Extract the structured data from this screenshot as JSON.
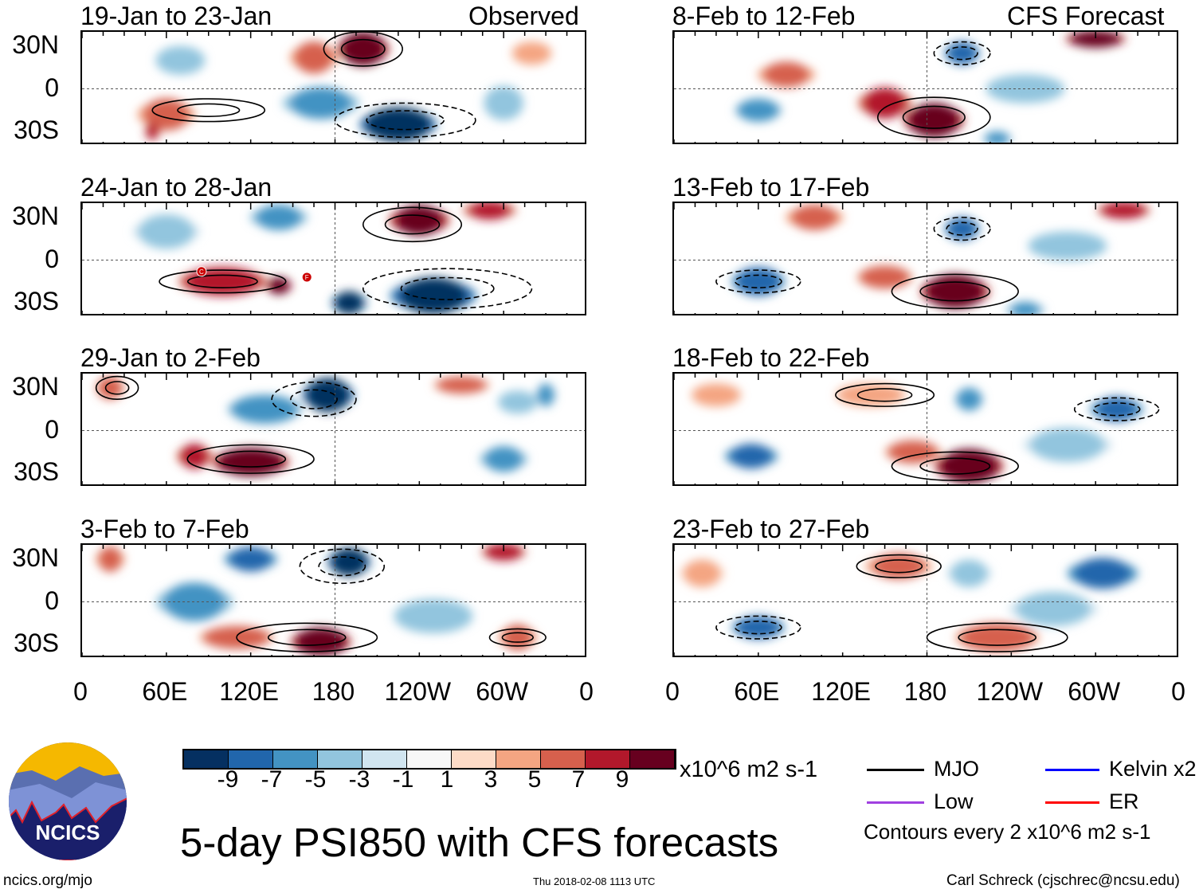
{
  "header": {
    "left_label": "Observed",
    "right_label": "CFS Forecast"
  },
  "lat_labels": [
    "30N",
    "0",
    "30S"
  ],
  "lon_labels": [
    "0",
    "60E",
    "120E",
    "180",
    "120W",
    "60W",
    "0"
  ],
  "panels": [
    {
      "title": "19-Jan to 23-Jan",
      "column": "left",
      "blobs": [
        [
          200,
          28,
          10,
          30,
          12
        ],
        [
          165,
          22,
          5,
          25,
          10
        ],
        [
          225,
          -25,
          -10,
          45,
          12
        ],
        [
          170,
          -10,
          -5,
          40,
          10
        ],
        [
          60,
          -18,
          5,
          30,
          10
        ],
        [
          50,
          -30,
          8,
          8,
          6
        ],
        [
          70,
          20,
          -4,
          25,
          10
        ],
        [
          300,
          -10,
          -4,
          20,
          12
        ],
        [
          320,
          25,
          4,
          20,
          8
        ]
      ],
      "contours": [
        [
          200,
          28,
          28,
          12,
          1
        ],
        [
          90,
          -15,
          40,
          8,
          1
        ],
        [
          230,
          -22,
          50,
          12,
          -1
        ]
      ],
      "cyclones": []
    },
    {
      "title": "24-Jan to 28-Jan",
      "column": "left",
      "blobs": [
        [
          240,
          28,
          9,
          35,
          10
        ],
        [
          290,
          35,
          7,
          30,
          6
        ],
        [
          100,
          -15,
          8,
          50,
          10
        ],
        [
          140,
          -18,
          10,
          15,
          6
        ],
        [
          250,
          -25,
          -9,
          50,
          12
        ],
        [
          190,
          -30,
          -10,
          20,
          8
        ],
        [
          140,
          30,
          -5,
          30,
          8
        ],
        [
          60,
          20,
          -3,
          30,
          10
        ]
      ],
      "contours": [
        [
          235,
          25,
          35,
          12,
          1
        ],
        [
          100,
          -15,
          45,
          8,
          1
        ],
        [
          260,
          -20,
          60,
          14,
          -1
        ]
      ],
      "cyclones": [
        [
          85,
          -8,
          "C"
        ],
        [
          160,
          -12,
          "F"
        ]
      ]
    },
    {
      "title": "29-Jan to 2-Feb",
      "column": "left",
      "blobs": [
        [
          175,
          25,
          -10,
          30,
          12
        ],
        [
          130,
          15,
          -6,
          40,
          10
        ],
        [
          120,
          -22,
          10,
          45,
          10
        ],
        [
          80,
          -18,
          7,
          20,
          8
        ],
        [
          20,
          30,
          6,
          15,
          8
        ],
        [
          270,
          32,
          6,
          30,
          6
        ],
        [
          300,
          -20,
          -5,
          25,
          8
        ],
        [
          310,
          20,
          -4,
          20,
          8
        ],
        [
          330,
          25,
          -6,
          10,
          8
        ]
      ],
      "contours": [
        [
          165,
          22,
          30,
          12,
          -1
        ],
        [
          120,
          -20,
          45,
          10,
          1
        ],
        [
          25,
          30,
          15,
          8,
          1
        ]
      ],
      "cyclones": []
    },
    {
      "title": "3-Feb to 7-Feb",
      "column": "left",
      "blobs": [
        [
          190,
          28,
          -10,
          25,
          10
        ],
        [
          120,
          30,
          -7,
          30,
          8
        ],
        [
          170,
          -28,
          10,
          35,
          10
        ],
        [
          110,
          -25,
          6,
          40,
          8
        ],
        [
          80,
          0,
          -5,
          40,
          12
        ],
        [
          250,
          -10,
          -4,
          40,
          12
        ],
        [
          310,
          -25,
          5,
          20,
          8
        ],
        [
          300,
          35,
          8,
          25,
          6
        ],
        [
          20,
          30,
          5,
          15,
          8
        ]
      ],
      "contours": [
        [
          185,
          25,
          30,
          12,
          -1
        ],
        [
          160,
          -25,
          50,
          10,
          1
        ],
        [
          310,
          -25,
          20,
          6,
          1
        ]
      ],
      "cyclones": []
    },
    {
      "title": "8-Feb to 12-Feb",
      "column": "right",
      "blobs": [
        [
          185,
          -22,
          10,
          35,
          12
        ],
        [
          150,
          -10,
          7,
          30,
          10
        ],
        [
          300,
          35,
          10,
          35,
          6
        ],
        [
          205,
          25,
          -8,
          20,
          8
        ],
        [
          60,
          -15,
          -6,
          25,
          8
        ],
        [
          250,
          0,
          -4,
          40,
          10
        ],
        [
          80,
          10,
          5,
          30,
          8
        ],
        [
          230,
          -35,
          -6,
          15,
          5
        ]
      ],
      "contours": [
        [
          185,
          -20,
          40,
          14,
          1
        ],
        [
          205,
          25,
          20,
          8,
          -1
        ]
      ],
      "cyclones": []
    },
    {
      "title": "13-Feb to 17-Feb",
      "column": "right",
      "blobs": [
        [
          200,
          -22,
          10,
          40,
          12
        ],
        [
          150,
          -12,
          6,
          30,
          8
        ],
        [
          205,
          22,
          -8,
          20,
          8
        ],
        [
          60,
          -15,
          -8,
          30,
          10
        ],
        [
          320,
          35,
          8,
          30,
          6
        ],
        [
          100,
          30,
          5,
          30,
          8
        ],
        [
          280,
          10,
          -4,
          40,
          10
        ],
        [
          250,
          -35,
          -5,
          20,
          5
        ]
      ],
      "contours": [
        [
          200,
          -22,
          45,
          12,
          1
        ],
        [
          205,
          22,
          20,
          8,
          -1
        ],
        [
          60,
          -15,
          30,
          8,
          -1
        ]
      ],
      "cyclones": []
    },
    {
      "title": "18-Feb to 22-Feb",
      "column": "right",
      "blobs": [
        [
          210,
          -25,
          10,
          40,
          12
        ],
        [
          170,
          -15,
          6,
          30,
          8
        ],
        [
          315,
          15,
          -7,
          30,
          8
        ],
        [
          210,
          22,
          -6,
          15,
          8
        ],
        [
          55,
          -18,
          -7,
          30,
          8
        ],
        [
          140,
          25,
          4,
          35,
          8
        ],
        [
          280,
          -10,
          -3,
          40,
          10
        ],
        [
          30,
          25,
          4,
          25,
          8
        ]
      ],
      "contours": [
        [
          200,
          -25,
          45,
          10,
          1
        ],
        [
          315,
          15,
          30,
          8,
          -1
        ],
        [
          150,
          25,
          35,
          8,
          1
        ]
      ],
      "cyclones": []
    },
    {
      "title": "23-Feb to 27-Feb",
      "column": "right",
      "blobs": [
        [
          60,
          -18,
          -8,
          30,
          8
        ],
        [
          305,
          20,
          -7,
          40,
          10
        ],
        [
          230,
          -25,
          6,
          45,
          10
        ],
        [
          160,
          25,
          5,
          35,
          8
        ],
        [
          210,
          20,
          -3,
          20,
          8
        ],
        [
          270,
          -5,
          -3,
          40,
          10
        ],
        [
          20,
          20,
          3,
          20,
          8
        ]
      ],
      "contours": [
        [
          230,
          -25,
          50,
          10,
          1
        ],
        [
          160,
          25,
          30,
          8,
          1
        ],
        [
          60,
          -18,
          30,
          8,
          -1
        ]
      ],
      "cyclones": []
    }
  ],
  "colorbar": {
    "colors": [
      "#053061",
      "#2166ac",
      "#4393c3",
      "#92c5de",
      "#d1e5f0",
      "#f7f7f7",
      "#fddbc7",
      "#f4a582",
      "#d6604d",
      "#b2182b",
      "#67001f"
    ],
    "labels": [
      "-9",
      "-7",
      "-5",
      "-3",
      "-1",
      "1",
      "3",
      "5",
      "7",
      "9"
    ],
    "units": "x10^6 m2 s-1"
  },
  "legend": {
    "items": [
      {
        "label": "MJO",
        "color": "#000000"
      },
      {
        "label": "Kelvin x2",
        "color": "#0000ff"
      },
      {
        "label": "Low",
        "color": "#a040e0"
      },
      {
        "label": "ER",
        "color": "#ff0000"
      }
    ],
    "note": "Contours every 2 x10^6 m2 s-1"
  },
  "title": "5-day PSI850 with CFS forecasts",
  "logo": {
    "text": "NCICS"
  },
  "footer": {
    "url": "ncics.org/mjo",
    "timestamp": "Thu 2018-02-08 1113 UTC",
    "credit": "Carl Schreck (cjschrec@ncsu.edu)"
  }
}
